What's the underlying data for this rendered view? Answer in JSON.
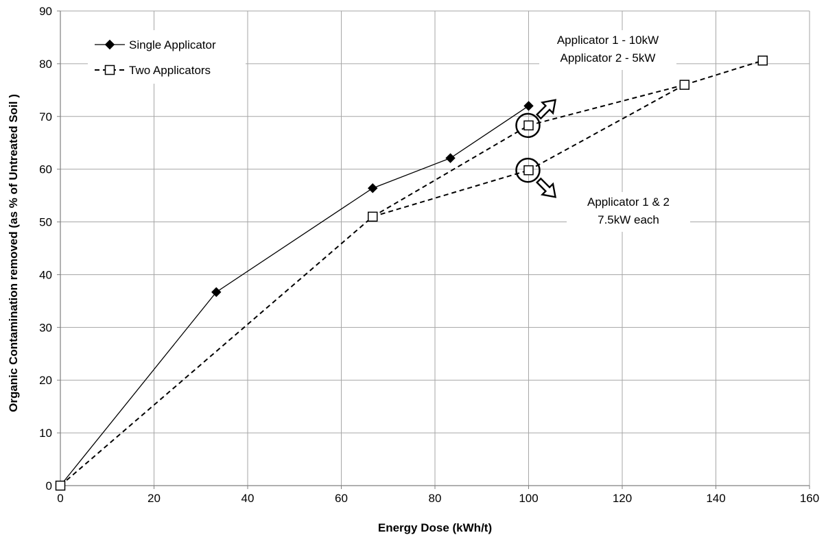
{
  "chart_data": {
    "type": "line",
    "xlabel": "Energy Dose (kWh/t)",
    "ylabel": "Organic Contamination removed (as % of Untreated Soil )",
    "xlim": [
      0,
      160
    ],
    "ylim": [
      0,
      90
    ],
    "x_ticks": [
      0,
      20,
      40,
      60,
      80,
      100,
      120,
      140,
      160
    ],
    "y_ticks": [
      0,
      10,
      20,
      30,
      40,
      50,
      60,
      70,
      80,
      90
    ],
    "grid": true,
    "legend_position": "top-left",
    "series": [
      {
        "name": "Single Applicator",
        "marker": "diamond-filled",
        "line_style": "solid",
        "points": [
          [
            0,
            0
          ],
          [
            33.3,
            36.7
          ],
          [
            66.7,
            56.4
          ],
          [
            83.3,
            62.1
          ],
          [
            100,
            72
          ]
        ]
      },
      {
        "name": "Two Applicators",
        "marker": "square-open",
        "line_style": "dashed",
        "points": [
          [
            0,
            0
          ],
          [
            66.7,
            51
          ],
          [
            100,
            68.3
          ],
          [
            100,
            59.8
          ],
          [
            133.3,
            76
          ],
          [
            150,
            80.6
          ]
        ],
        "segments": [
          [
            0,
            1
          ],
          [
            1,
            2
          ],
          [
            1,
            3
          ],
          [
            2,
            4
          ],
          [
            3,
            4
          ],
          [
            4,
            5
          ]
        ]
      }
    ],
    "annotations": [
      {
        "lines": [
          "Applicator 1 - 10kW",
          "Applicator 2 - 5kW"
        ],
        "target": [
          100,
          68.3
        ],
        "arrow": "up-right"
      },
      {
        "lines": [
          "Applicator 1 & 2",
          "7.5kW each"
        ],
        "target": [
          100,
          59.8
        ],
        "arrow": "down-right"
      }
    ]
  }
}
